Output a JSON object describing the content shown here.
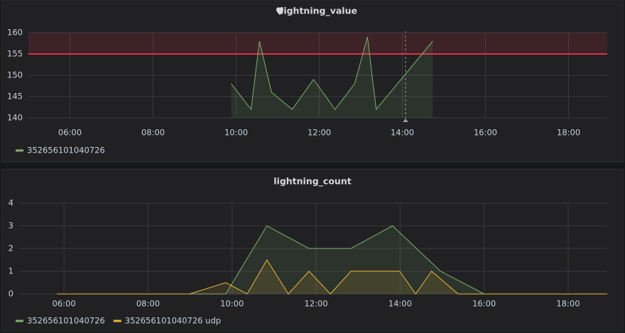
{
  "chart_data": [
    {
      "type": "line",
      "title": "lightning_value",
      "xlim": [
        5.0,
        18.93
      ],
      "xticks": [
        {
          "value": 6,
          "label": "06:00"
        },
        {
          "value": 8,
          "label": "08:00"
        },
        {
          "value": 10,
          "label": "10:00"
        },
        {
          "value": 12,
          "label": "12:00"
        },
        {
          "value": 14,
          "label": "14:00"
        },
        {
          "value": 16,
          "label": "16:00"
        },
        {
          "value": 18,
          "label": "18:00"
        }
      ],
      "ylim": [
        140,
        160
      ],
      "yticks": [
        140,
        145,
        150,
        155,
        160
      ],
      "grid": true,
      "fill": true,
      "threshold": 155,
      "threshold_color": "#e02f44",
      "series": [
        {
          "name": "352656101040726",
          "color": "#7eb26d",
          "x": [
            9.88,
            10.36,
            10.56,
            10.85,
            11.35,
            11.86,
            12.38,
            12.85,
            13.16,
            13.37,
            14.73
          ],
          "values": [
            148,
            142,
            158,
            146,
            142,
            149,
            142,
            148,
            159,
            142,
            158
          ]
        }
      ]
    },
    {
      "type": "line",
      "title": "lightning_count",
      "xlim": [
        4.95,
        18.93
      ],
      "xticks": [
        {
          "value": 6,
          "label": "06:00"
        },
        {
          "value": 8,
          "label": "08:00"
        },
        {
          "value": 10,
          "label": "10:00"
        },
        {
          "value": 12,
          "label": "12:00"
        },
        {
          "value": 14,
          "label": "14:00"
        },
        {
          "value": 16,
          "label": "16:00"
        },
        {
          "value": 18,
          "label": "18:00"
        }
      ],
      "ylim": [
        0,
        4
      ],
      "yticks": [
        0,
        1,
        2,
        3,
        4
      ],
      "grid": true,
      "fill": true,
      "series": [
        {
          "name": "352656101040726",
          "color": "#7eb26d",
          "x": [
            5.83,
            9.85,
            10.83,
            11.83,
            12.83,
            13.82,
            14.96,
            16.0,
            18.93
          ],
          "values": [
            0,
            0,
            3,
            2,
            2,
            3,
            1,
            0,
            0
          ]
        },
        {
          "name": "352656101040726 udp",
          "color": "#eab839",
          "x": [
            5.83,
            8.99,
            9.85,
            10.36,
            10.83,
            11.34,
            11.83,
            12.34,
            12.83,
            13.99,
            14.37,
            14.75,
            15.38,
            18.93
          ],
          "values": [
            0,
            0,
            0.5,
            0,
            1.5,
            0,
            1,
            0,
            1,
            1,
            0,
            1,
            0,
            0
          ]
        }
      ]
    }
  ]
}
